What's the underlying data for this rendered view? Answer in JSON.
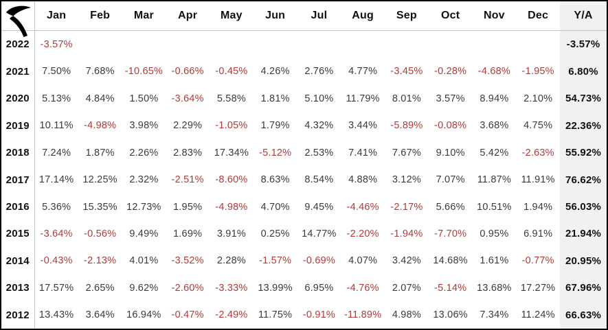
{
  "brand": {
    "icon": "r-swoosh-logo"
  },
  "header": {
    "columns": [
      "Jan",
      "Feb",
      "Mar",
      "Apr",
      "May",
      "Jun",
      "Jul",
      "Aug",
      "Sep",
      "Oct",
      "Nov",
      "Dec"
    ],
    "total_label": "Y/A"
  },
  "rows": [
    {
      "year": "2022",
      "values": [
        "-3.57%",
        "",
        "",
        "",
        "",
        "",
        "",
        "",
        "",
        "",
        "",
        ""
      ],
      "total": "-3.57%"
    },
    {
      "year": "2021",
      "values": [
        "7.50%",
        "7.68%",
        "-10.65%",
        "-0.66%",
        "-0.45%",
        "4.26%",
        "2.76%",
        "4.77%",
        "-3.45%",
        "-0.28%",
        "-4.68%",
        "-1.95%"
      ],
      "total": "6.80%"
    },
    {
      "year": "2020",
      "values": [
        "5.13%",
        "4.84%",
        "1.50%",
        "-3.64%",
        "5.58%",
        "1.81%",
        "5.10%",
        "11.79%",
        "8.01%",
        "3.57%",
        "8.94%",
        "2.10%"
      ],
      "total": "54.73%"
    },
    {
      "year": "2019",
      "values": [
        "10.11%",
        "-4.98%",
        "3.98%",
        "2.29%",
        "-1.05%",
        "1.79%",
        "4.32%",
        "3.44%",
        "-5.89%",
        "-0.08%",
        "3.68%",
        "4.75%"
      ],
      "total": "22.36%"
    },
    {
      "year": "2018",
      "values": [
        "7.24%",
        "1.87%",
        "2.26%",
        "2.83%",
        "17.34%",
        "-5.12%",
        "2.53%",
        "7.41%",
        "7.67%",
        "9.10%",
        "5.42%",
        "-2.63%"
      ],
      "total": "55.92%"
    },
    {
      "year": "2017",
      "values": [
        "17.14%",
        "12.25%",
        "2.32%",
        "-2.51%",
        "-8.60%",
        "8.63%",
        "8.54%",
        "4.88%",
        "3.12%",
        "7.07%",
        "11.87%",
        "11.91%"
      ],
      "total": "76.62%"
    },
    {
      "year": "2016",
      "values": [
        "5.36%",
        "15.35%",
        "12.73%",
        "1.95%",
        "-4.98%",
        "4.70%",
        "9.45%",
        "-4.46%",
        "-2.17%",
        "5.66%",
        "10.51%",
        "1.94%"
      ],
      "total": "56.03%"
    },
    {
      "year": "2015",
      "values": [
        "-3.64%",
        "-0.56%",
        "9.49%",
        "1.69%",
        "3.91%",
        "0.25%",
        "14.77%",
        "-2.20%",
        "-1.94%",
        "-7.70%",
        "0.95%",
        "6.91%"
      ],
      "total": "21.94%"
    },
    {
      "year": "2014",
      "values": [
        "-0.43%",
        "-2.13%",
        "4.01%",
        "-3.52%",
        "2.28%",
        "-1.57%",
        "-0.69%",
        "4.07%",
        "3.42%",
        "14.68%",
        "1.61%",
        "-0.77%"
      ],
      "total": "20.95%"
    },
    {
      "year": "2013",
      "values": [
        "17.57%",
        "2.65%",
        "9.62%",
        "-2.60%",
        "-3.33%",
        "13.99%",
        "6.95%",
        "-4.76%",
        "2.07%",
        "-5.14%",
        "13.68%",
        "17.27%"
      ],
      "total": "67.96%"
    },
    {
      "year": "2012",
      "values": [
        "13.43%",
        "3.64%",
        "16.94%",
        "-0.47%",
        "-2.49%",
        "11.75%",
        "-0.91%",
        "-11.89%",
        "4.98%",
        "13.06%",
        "7.34%",
        "11.24%"
      ],
      "total": "66.63%"
    }
  ],
  "colors": {
    "negative": "#b23a3a",
    "positive": "#3a3a3a",
    "heading": "#111111",
    "total_bg": "#f1f1ef",
    "grid_line": "#c3c3c3",
    "frame": "#000000"
  },
  "chart_data": {
    "type": "table",
    "columns": [
      "Jan",
      "Feb",
      "Mar",
      "Apr",
      "May",
      "Jun",
      "Jul",
      "Aug",
      "Sep",
      "Oct",
      "Nov",
      "Dec",
      "Y/A"
    ],
    "value_unit": "percent",
    "rows": [
      {
        "year": 2022,
        "monthly": [
          -3.57,
          null,
          null,
          null,
          null,
          null,
          null,
          null,
          null,
          null,
          null,
          null
        ],
        "total": -3.57
      },
      {
        "year": 2021,
        "monthly": [
          7.5,
          7.68,
          -10.65,
          -0.66,
          -0.45,
          4.26,
          2.76,
          4.77,
          -3.45,
          -0.28,
          -4.68,
          -1.95
        ],
        "total": 6.8
      },
      {
        "year": 2020,
        "monthly": [
          5.13,
          4.84,
          1.5,
          -3.64,
          5.58,
          1.81,
          5.1,
          11.79,
          8.01,
          3.57,
          8.94,
          2.1
        ],
        "total": 54.73
      },
      {
        "year": 2019,
        "monthly": [
          10.11,
          -4.98,
          3.98,
          2.29,
          -1.05,
          1.79,
          4.32,
          3.44,
          -5.89,
          -0.08,
          3.68,
          4.75
        ],
        "total": 22.36
      },
      {
        "year": 2018,
        "monthly": [
          7.24,
          1.87,
          2.26,
          2.83,
          17.34,
          -5.12,
          2.53,
          7.41,
          7.67,
          9.1,
          5.42,
          -2.63
        ],
        "total": 55.92
      },
      {
        "year": 2017,
        "monthly": [
          17.14,
          12.25,
          2.32,
          -2.51,
          -8.6,
          8.63,
          8.54,
          4.88,
          3.12,
          7.07,
          11.87,
          11.91
        ],
        "total": 76.62
      },
      {
        "year": 2016,
        "monthly": [
          5.36,
          15.35,
          12.73,
          1.95,
          -4.98,
          4.7,
          9.45,
          -4.46,
          -2.17,
          5.66,
          10.51,
          1.94
        ],
        "total": 56.03
      },
      {
        "year": 2015,
        "monthly": [
          -3.64,
          -0.56,
          9.49,
          1.69,
          3.91,
          0.25,
          14.77,
          -2.2,
          -1.94,
          -7.7,
          0.95,
          6.91
        ],
        "total": 21.94
      },
      {
        "year": 2014,
        "monthly": [
          -0.43,
          -2.13,
          4.01,
          -3.52,
          2.28,
          -1.57,
          -0.69,
          4.07,
          3.42,
          14.68,
          1.61,
          -0.77
        ],
        "total": 20.95
      },
      {
        "year": 2013,
        "monthly": [
          17.57,
          2.65,
          9.62,
          -2.6,
          -3.33,
          13.99,
          6.95,
          -4.76,
          2.07,
          -5.14,
          13.68,
          17.27
        ],
        "total": 67.96
      },
      {
        "year": 2012,
        "monthly": [
          13.43,
          3.64,
          16.94,
          -0.47,
          -2.49,
          11.75,
          -0.91,
          -11.89,
          4.98,
          13.06,
          7.34,
          11.24
        ],
        "total": 66.63
      }
    ],
    "style_notes": "negative values rendered red, positives dark gray, yearly totals bold on light gray band"
  }
}
